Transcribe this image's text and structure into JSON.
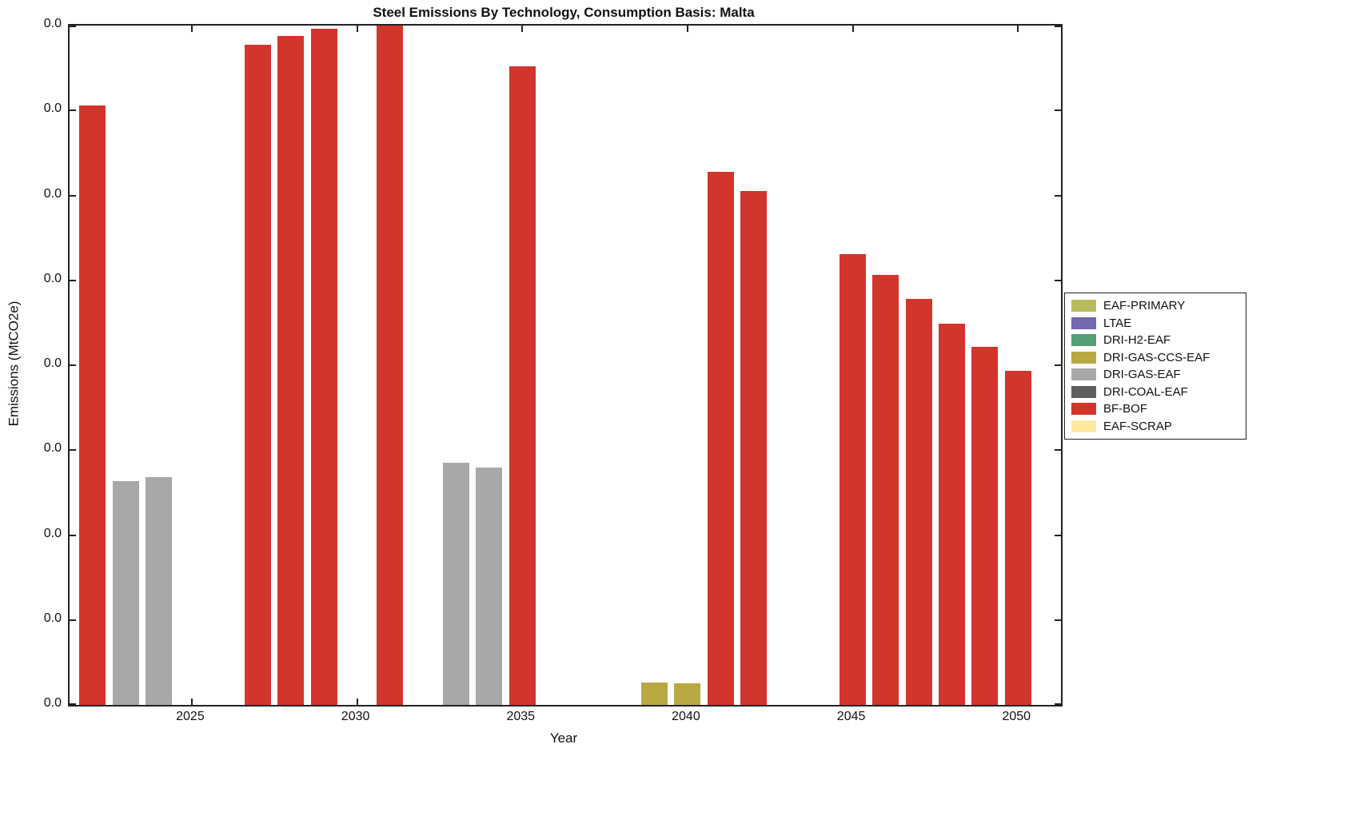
{
  "chart_data": {
    "type": "bar",
    "title": "Steel Emissions By Technology, Consumption Basis: Malta",
    "xlabel": "Year",
    "ylabel": "Emissions (MtCO2e)",
    "x_tick_labels": [
      "2025",
      "2030",
      "2035",
      "2040",
      "2045",
      "2050"
    ],
    "x_tick_years": [
      2025,
      2030,
      2035,
      2040,
      2045,
      2050
    ],
    "y_tick_labels": [
      "0.0",
      "0.0",
      "0.0",
      "0.0",
      "0.0",
      "0.0",
      "0.0",
      "0.0",
      "0.0"
    ],
    "x_axis_range": [
      2021.3,
      2051.3
    ],
    "grid": false,
    "legend_position": "right-outside",
    "bar_width_years": 0.8,
    "legend": [
      {
        "label": "EAF-PRIMARY",
        "color": "#b8bc5a"
      },
      {
        "label": "LTAE",
        "color": "#7468af"
      },
      {
        "label": "DRI-H2-EAF",
        "color": "#559e76"
      },
      {
        "label": "DRI-GAS-CCS-EAF",
        "color": "#b9a943"
      },
      {
        "label": "DRI-GAS-EAF",
        "color": "#a8a8a8"
      },
      {
        "label": "DRI-COAL-EAF",
        "color": "#5e5e5e"
      },
      {
        "label": "BF-BOF",
        "color": "#d2352b"
      },
      {
        "label": "EAF-SCRAP",
        "color": "#fde9a2"
      }
    ],
    "bars": [
      {
        "year": 2022,
        "tech": "BF-BOF",
        "value_frac_of_axis": 0.882
      },
      {
        "year": 2023,
        "tech": "DRI-GAS-EAF",
        "value_frac_of_axis": 0.329
      },
      {
        "year": 2024,
        "tech": "DRI-GAS-EAF",
        "value_frac_of_axis": 0.335
      },
      {
        "year": 2027,
        "tech": "BF-BOF",
        "value_frac_of_axis": 0.972
      },
      {
        "year": 2028,
        "tech": "BF-BOF",
        "value_frac_of_axis": 0.985
      },
      {
        "year": 2029,
        "tech": "BF-BOF",
        "value_frac_of_axis": 0.995
      },
      {
        "year": 2031,
        "tech": "BF-BOF",
        "value_frac_of_axis": 1.0
      },
      {
        "year": 2033,
        "tech": "DRI-GAS-EAF",
        "value_frac_of_axis": 0.356
      },
      {
        "year": 2034,
        "tech": "DRI-GAS-EAF",
        "value_frac_of_axis": 0.349
      },
      {
        "year": 2035,
        "tech": "BF-BOF",
        "value_frac_of_axis": 0.94
      },
      {
        "year": 2039,
        "tech": "DRI-GAS-CCS-EAF",
        "value_frac_of_axis": 0.033
      },
      {
        "year": 2040,
        "tech": "DRI-GAS-CCS-EAF",
        "value_frac_of_axis": 0.032
      },
      {
        "year": 2041,
        "tech": "BF-BOF",
        "value_frac_of_axis": 0.785
      },
      {
        "year": 2042,
        "tech": "BF-BOF",
        "value_frac_of_axis": 0.757
      },
      {
        "year": 2045,
        "tech": "BF-BOF",
        "value_frac_of_axis": 0.663
      },
      {
        "year": 2046,
        "tech": "BF-BOF",
        "value_frac_of_axis": 0.633
      },
      {
        "year": 2047,
        "tech": "BF-BOF",
        "value_frac_of_axis": 0.598
      },
      {
        "year": 2048,
        "tech": "BF-BOF",
        "value_frac_of_axis": 0.561
      },
      {
        "year": 2049,
        "tech": "BF-BOF",
        "value_frac_of_axis": 0.527
      },
      {
        "year": 2050,
        "tech": "BF-BOF",
        "value_frac_of_axis": 0.492
      }
    ]
  }
}
